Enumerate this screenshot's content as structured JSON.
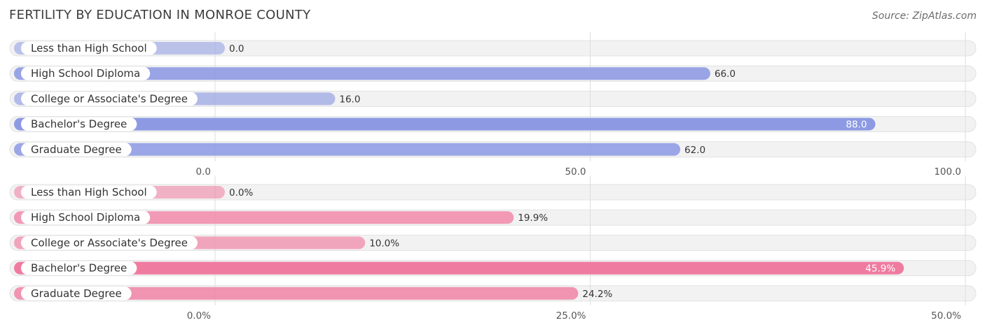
{
  "header": {
    "title": "Fertility by Education in Monroe County",
    "source": "Source: ZipAtlas.com"
  },
  "chart_data": [
    {
      "type": "bar",
      "orientation": "horizontal",
      "color": "#8d9ae3",
      "categories": [
        "Less than High School",
        "High School Diploma",
        "College or Associate's Degree",
        "Bachelor's Degree",
        "Graduate Degree"
      ],
      "values": [
        0.0,
        66.0,
        16.0,
        88.0,
        62.0
      ],
      "value_labels": [
        "0.0",
        "66.0",
        "16.0",
        "88.0",
        "62.0"
      ],
      "xlim": [
        0,
        100
      ],
      "ticks": [
        0,
        50,
        100
      ],
      "tick_labels": [
        "0.0",
        "50.0",
        "100.0"
      ]
    },
    {
      "type": "bar",
      "orientation": "horizontal",
      "color": "#f07ba0",
      "categories": [
        "Less than High School",
        "High School Diploma",
        "College or Associate's Degree",
        "Bachelor's Degree",
        "Graduate Degree"
      ],
      "values": [
        0.0,
        19.9,
        10.0,
        45.9,
        24.2
      ],
      "value_labels": [
        "0.0%",
        "19.9%",
        "10.0%",
        "45.9%",
        "24.2%"
      ],
      "xlim": [
        0,
        50
      ],
      "ticks": [
        0,
        25,
        50
      ],
      "tick_labels": [
        "0.0%",
        "25.0%",
        "50.0%"
      ]
    }
  ]
}
